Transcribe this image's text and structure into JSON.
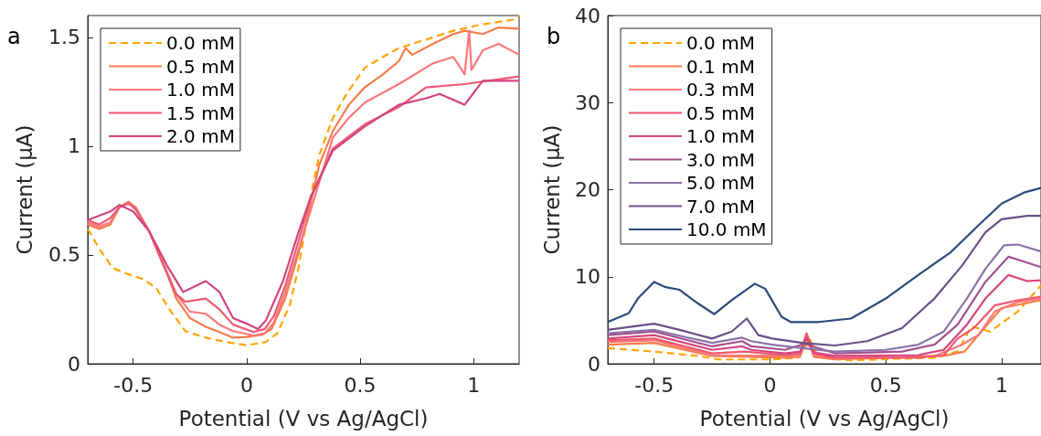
{
  "chart_data": [
    {
      "type": "line",
      "xlabel": "Potential (V vs Ag/AgCl)",
      "ylabel": "Current (μA)",
      "annotations": [
        "a"
      ],
      "xlim": [
        -0.7,
        1.2
      ],
      "xticks": [
        -0.5,
        0,
        0.5,
        1
      ],
      "ylim": [
        0,
        1.6
      ],
      "yticks": [
        0,
        0.5,
        1,
        1.5
      ],
      "grid": false,
      "legend": "top left",
      "marker": "none",
      "series": [
        {
          "name": "0.0 mM",
          "color": "#ffa500",
          "line_style": "dashed",
          "x": [
            -0.7,
            -0.65,
            -0.59,
            -0.53,
            -0.46,
            -0.4,
            -0.34,
            -0.27,
            -0.18,
            -0.09,
            0,
            0.085,
            0.135,
            0.19,
            0.23,
            0.28,
            0.32,
            0.38,
            0.44,
            0.52,
            0.6,
            0.67,
            0.79,
            0.91,
            1.04,
            1.17,
            1.2
          ],
          "values": [
            0.62,
            0.53,
            0.44,
            0.415,
            0.39,
            0.35,
            0.25,
            0.15,
            0.12,
            0.1,
            0.085,
            0.1,
            0.14,
            0.27,
            0.45,
            0.76,
            0.96,
            1.13,
            1.24,
            1.36,
            1.41,
            1.45,
            1.49,
            1.53,
            1.56,
            1.58,
            1.6
          ]
        },
        {
          "name": "0.5 mM",
          "color": "#f97b4a",
          "line_style": "solid",
          "x": [
            -0.7,
            -0.65,
            -0.6,
            -0.56,
            -0.52,
            -0.49,
            -0.43,
            -0.37,
            -0.31,
            -0.25,
            -0.18,
            -0.12,
            -0.06,
            0,
            0.07,
            0.11,
            0.17,
            0.23,
            0.28,
            0.32,
            0.38,
            0.45,
            0.52,
            0.6,
            0.67,
            0.7,
            0.73,
            0.82,
            0.91,
            0.96,
            1.04,
            1.11,
            1.2
          ],
          "values": [
            0.64,
            0.62,
            0.64,
            0.72,
            0.745,
            0.72,
            0.61,
            0.47,
            0.3,
            0.21,
            0.17,
            0.146,
            0.12,
            0.123,
            0.134,
            0.16,
            0.3,
            0.515,
            0.73,
            0.915,
            1.07,
            1.19,
            1.27,
            1.33,
            1.39,
            1.45,
            1.42,
            1.47,
            1.515,
            1.53,
            1.515,
            1.545,
            1.54
          ]
        },
        {
          "name": "1.0 mM",
          "color": "#f9787a",
          "line_style": "solid",
          "x": [
            -0.7,
            -0.65,
            -0.6,
            -0.56,
            -0.52,
            -0.49,
            -0.43,
            -0.37,
            -0.31,
            -0.25,
            -0.18,
            -0.12,
            -0.06,
            0.03,
            0.08,
            0.12,
            0.17,
            0.23,
            0.28,
            0.38,
            0.45,
            0.52,
            0.67,
            0.82,
            0.91,
            0.96,
            0.98,
            0.99,
            1.04,
            1.11,
            1.2
          ],
          "values": [
            0.65,
            0.63,
            0.65,
            0.72,
            0.74,
            0.72,
            0.61,
            0.47,
            0.32,
            0.24,
            0.23,
            0.18,
            0.15,
            0.13,
            0.14,
            0.19,
            0.33,
            0.53,
            0.7,
            1.04,
            1.13,
            1.2,
            1.285,
            1.38,
            1.41,
            1.33,
            1.53,
            1.35,
            1.44,
            1.47,
            1.42
          ]
        },
        {
          "name": "1.5 mM",
          "color": "#ee5a72",
          "line_style": "solid",
          "x": [
            -0.7,
            -0.65,
            -0.6,
            -0.56,
            -0.52,
            -0.49,
            -0.43,
            -0.37,
            -0.31,
            -0.27,
            -0.18,
            -0.12,
            -0.06,
            0.03,
            0.08,
            0.12,
            0.17,
            0.23,
            0.28,
            0.38,
            0.52,
            0.67,
            0.79,
            0.96,
            1.2
          ],
          "values": [
            0.66,
            0.64,
            0.67,
            0.72,
            0.735,
            0.71,
            0.61,
            0.46,
            0.32,
            0.285,
            0.3,
            0.25,
            0.18,
            0.146,
            0.16,
            0.22,
            0.36,
            0.57,
            0.76,
            0.99,
            1.1,
            1.18,
            1.27,
            1.285,
            1.32
          ]
        },
        {
          "name": "2.0 mM",
          "color": "#d1447f",
          "line_style": "solid",
          "x": [
            -0.7,
            -0.6,
            -0.56,
            -0.5,
            -0.43,
            -0.35,
            -0.28,
            -0.18,
            -0.12,
            -0.06,
            0.01,
            0.05,
            0.085,
            0.16,
            0.23,
            0.28,
            0.38,
            0.52,
            0.67,
            0.79,
            0.85,
            0.96,
            1.04,
            1.2
          ],
          "values": [
            0.66,
            0.7,
            0.73,
            0.7,
            0.61,
            0.45,
            0.33,
            0.38,
            0.33,
            0.21,
            0.18,
            0.16,
            0.2,
            0.38,
            0.61,
            0.76,
            0.98,
            1.09,
            1.19,
            1.22,
            1.24,
            1.19,
            1.3,
            1.3
          ]
        }
      ]
    },
    {
      "type": "line",
      "xlabel": "Potential (V vs Ag/AgCl)",
      "ylabel": "Current (μA)",
      "annotations": [
        "b"
      ],
      "xlim": [
        -0.7,
        1.17
      ],
      "xticks": [
        -0.5,
        0,
        0.5,
        1
      ],
      "ylim": [
        0,
        40
      ],
      "yticks": [
        0,
        10,
        20,
        30,
        40
      ],
      "grid": false,
      "legend": "top left",
      "marker": "none",
      "series": [
        {
          "name": "0.0 mM",
          "color": "#ffa500",
          "line_style": "dashed",
          "x": [
            -0.7,
            -0.5,
            -0.31,
            -0.22,
            0.01,
            0.12,
            0.15,
            0.17,
            0.21,
            0.35,
            0.71,
            0.81,
            0.87,
            0.95,
            1.07,
            1.17
          ],
          "values": [
            1.8,
            1.4,
            0.9,
            0.5,
            0.5,
            0.7,
            1.8,
            2.9,
            0.7,
            0.4,
            0.7,
            1.4,
            4.3,
            3.7,
            6,
            9
          ]
        },
        {
          "name": "0.1 mM",
          "color": "#f97d48",
          "line_style": "solid",
          "x": [
            -0.7,
            -0.5,
            -0.25,
            0.065,
            0.13,
            0.158,
            0.19,
            0.28,
            0.75,
            0.84,
            0.9,
            1,
            1.17
          ],
          "values": [
            2.2,
            2.4,
            0.9,
            0.7,
            0.8,
            3,
            0.8,
            0.5,
            0.9,
            1.4,
            3.3,
            6.4,
            7.3
          ]
        },
        {
          "name": "0.3 mM",
          "color": "#f97a7a",
          "line_style": "solid",
          "x": [
            -0.7,
            -0.5,
            -0.25,
            0.065,
            0.13,
            0.158,
            0.19,
            0.28,
            0.71,
            0.83,
            0.9,
            0.97,
            1.07,
            1.17
          ],
          "values": [
            2.5,
            2.7,
            1,
            0.9,
            1,
            3.2,
            1,
            0.6,
            0.9,
            2.2,
            3.3,
            6,
            7.1,
            7.5
          ]
        },
        {
          "name": "0.5 mM",
          "color": "#f0586c",
          "line_style": "solid",
          "x": [
            -0.7,
            -0.5,
            -0.25,
            -0.11,
            0.065,
            0.13,
            0.158,
            0.19,
            0.28,
            0.64,
            0.75,
            0.81,
            0.88,
            0.97,
            1.07,
            1.17
          ],
          "values": [
            2.7,
            2.9,
            1.2,
            1.4,
            1,
            1.2,
            3.5,
            1.2,
            0.7,
            0.7,
            1,
            2.9,
            4.1,
            6.7,
            7.3,
            7.7
          ]
        },
        {
          "name": "1.0 mM",
          "color": "#d5457e",
          "line_style": "solid",
          "x": [
            -0.7,
            -0.5,
            -0.25,
            -0.12,
            -0.08,
            0.065,
            0.13,
            0.158,
            0.19,
            0.28,
            0.64,
            0.75,
            0.85,
            0.93,
            1.03,
            1.11,
            1.17
          ],
          "values": [
            2.9,
            3.3,
            1.6,
            2,
            1.6,
            1.2,
            1.4,
            3,
            1.3,
            0.9,
            1,
            1.6,
            4.5,
            7.5,
            10.2,
            9.5,
            9.6
          ]
        },
        {
          "name": "3.0 mM",
          "color": "#a5508e",
          "line_style": "solid",
          "x": [
            -0.7,
            -0.5,
            -0.25,
            -0.12,
            -0.08,
            0.065,
            0.15,
            0.28,
            0.57,
            0.71,
            0.81,
            0.93,
            1.03,
            1.1,
            1.17
          ],
          "values": [
            3.3,
            3.7,
            2,
            2.6,
            2,
            1.6,
            2.3,
            1.2,
            1.4,
            2.2,
            4.5,
            9.4,
            12.3,
            11.7,
            11.1
          ]
        },
        {
          "name": "5.0 mM",
          "color": "#8b72a8",
          "line_style": "solid",
          "x": [
            -0.7,
            -0.5,
            -0.37,
            -0.25,
            -0.12,
            -0.08,
            0.01,
            0.14,
            0.28,
            0.5,
            0.64,
            0.75,
            0.85,
            0.93,
            1.01,
            1.07,
            1.17
          ],
          "values": [
            3.5,
            3.9,
            3.1,
            2.4,
            3,
            2.6,
            2.2,
            1.8,
            1.4,
            1.6,
            2.2,
            3.7,
            7.5,
            10.9,
            13.6,
            13.7,
            12.9
          ]
        },
        {
          "name": "7.0 mM",
          "color": "#6a4f8a",
          "line_style": "solid",
          "x": [
            -0.7,
            -0.5,
            -0.39,
            -0.25,
            -0.165,
            -0.1,
            -0.05,
            0.01,
            0.14,
            0.28,
            0.42,
            0.57,
            0.71,
            0.83,
            0.93,
            1,
            1.11,
            1.17
          ],
          "values": [
            3.9,
            4.6,
            3.9,
            2.9,
            3.7,
            5.2,
            3.3,
            2.9,
            2.4,
            2.1,
            2.6,
            4.1,
            7.5,
            11.3,
            15.1,
            16.6,
            17,
            17
          ]
        },
        {
          "name": "10.0 mM",
          "color": "#2c4a7c",
          "line_style": "solid",
          "x": [
            -0.7,
            -0.61,
            -0.57,
            -0.5,
            -0.45,
            -0.39,
            -0.32,
            -0.24,
            -0.165,
            -0.065,
            -0.02,
            0.05,
            0.09,
            0.21,
            0.35,
            0.5,
            0.64,
            0.78,
            0.9,
            1,
            1.1,
            1.17
          ],
          "values": [
            4.8,
            5.8,
            7.5,
            9.4,
            8.8,
            8.5,
            7.1,
            5.7,
            7.3,
            9.2,
            8.6,
            5.4,
            4.8,
            4.8,
            5.2,
            7.5,
            10.2,
            12.8,
            15.9,
            18.4,
            19.7,
            20.2
          ]
        }
      ]
    }
  ]
}
